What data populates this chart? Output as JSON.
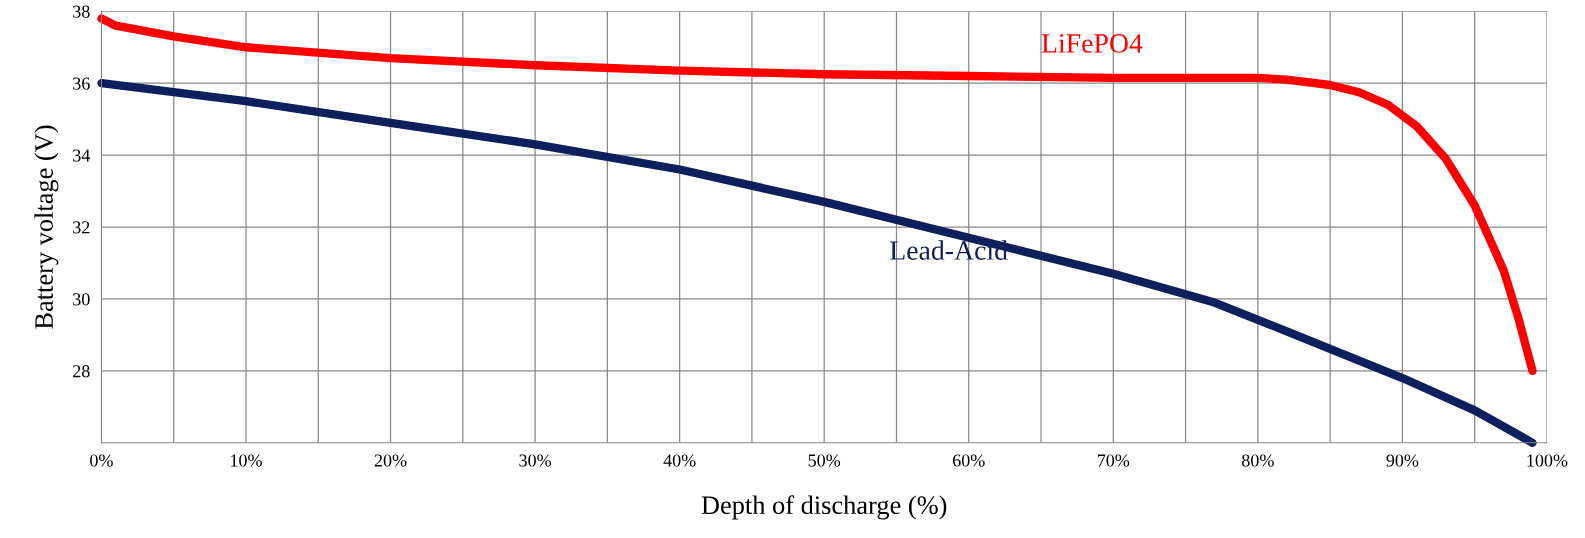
{
  "chart_data": {
    "type": "line",
    "xlabel": "Depth of discharge (%)",
    "ylabel": "Battery voltage (V)",
    "xlim": [
      0,
      100
    ],
    "ylim": [
      26,
      38
    ],
    "xticks": [
      {
        "value": 0,
        "label": "0%"
      },
      {
        "value": 5,
        "label": null
      },
      {
        "value": 10,
        "label": "10%"
      },
      {
        "value": 15,
        "label": null
      },
      {
        "value": 20,
        "label": "20%"
      },
      {
        "value": 25,
        "label": null
      },
      {
        "value": 30,
        "label": "30%"
      },
      {
        "value": 35,
        "label": null
      },
      {
        "value": 40,
        "label": "40%"
      },
      {
        "value": 45,
        "label": null
      },
      {
        "value": 50,
        "label": "50%"
      },
      {
        "value": 55,
        "label": null
      },
      {
        "value": 60,
        "label": "60%"
      },
      {
        "value": 65,
        "label": null
      },
      {
        "value": 70,
        "label": "70%"
      },
      {
        "value": 75,
        "label": null
      },
      {
        "value": 80,
        "label": "80%"
      },
      {
        "value": 85,
        "label": null
      },
      {
        "value": 90,
        "label": "90%"
      },
      {
        "value": 95,
        "label": null
      },
      {
        "value": 100,
        "label": "100%"
      }
    ],
    "yticks": [
      28,
      30,
      32,
      34,
      36,
      38
    ],
    "grid": true,
    "legend": false,
    "marker": "none",
    "line_style": "solid",
    "series": [
      {
        "name": "LiFePO4",
        "color": "#ff0000",
        "x": [
          0,
          1,
          5,
          10,
          20,
          30,
          40,
          50,
          60,
          70,
          80,
          82,
          85,
          87,
          89,
          91,
          93,
          95,
          97,
          98,
          99
        ],
        "values": [
          37.8,
          37.6,
          37.3,
          37.0,
          36.7,
          36.5,
          36.35,
          36.25,
          36.2,
          36.15,
          36.15,
          36.1,
          35.95,
          35.75,
          35.4,
          34.8,
          33.9,
          32.6,
          30.8,
          29.5,
          28.0
        ]
      },
      {
        "name": "Lead-Acid",
        "color": "#0d1f5c",
        "x": [
          0,
          10,
          20,
          30,
          40,
          50,
          60,
          70,
          77,
          82,
          90,
          95,
          99
        ],
        "values": [
          36.0,
          35.5,
          34.9,
          34.3,
          33.6,
          32.7,
          31.7,
          30.7,
          29.9,
          29.1,
          27.8,
          26.9,
          26.0
        ]
      }
    ]
  }
}
